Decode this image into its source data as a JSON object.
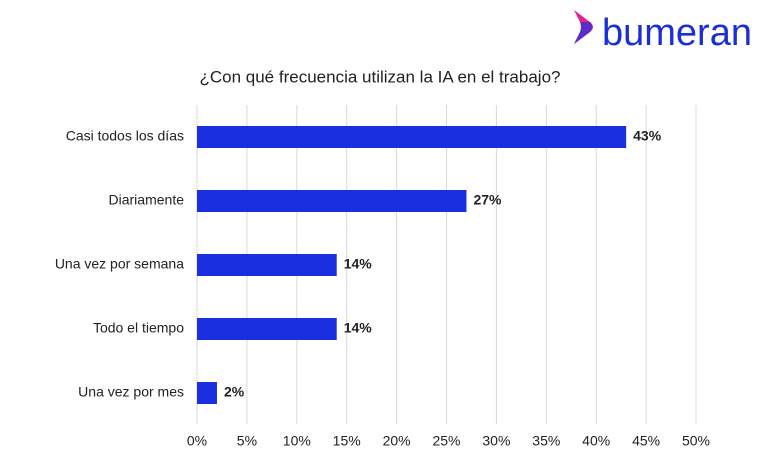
{
  "brand": "bumeran",
  "chart_data": {
    "type": "hbar",
    "title": "¿Con qué frecuencia utilizan la IA en el trabajo?",
    "categories": [
      "Casi todos los días",
      "Diariamente",
      "Una vez por semana",
      "Todo el tiempo",
      "Una vez por mes"
    ],
    "values": [
      43,
      27,
      14,
      14,
      2
    ],
    "value_labels": [
      "43%",
      "27%",
      "14%",
      "14%",
      "2%"
    ],
    "color": "#1a2fe0",
    "xlim": [
      0,
      50
    ],
    "xticks": [
      {
        "value": 0,
        "label": "0%"
      },
      {
        "value": 5,
        "label": "5%"
      },
      {
        "value": 10,
        "label": "10%"
      },
      {
        "value": 15,
        "label": "15%"
      },
      {
        "value": 20,
        "label": "20%"
      },
      {
        "value": 25,
        "label": "25%"
      },
      {
        "value": 30,
        "label": "30%"
      },
      {
        "value": 35,
        "label": "35%"
      },
      {
        "value": 40,
        "label": "40%"
      },
      {
        "value": 45,
        "label": "45%"
      },
      {
        "value": 50,
        "label": "50%"
      }
    ],
    "grid": true
  }
}
